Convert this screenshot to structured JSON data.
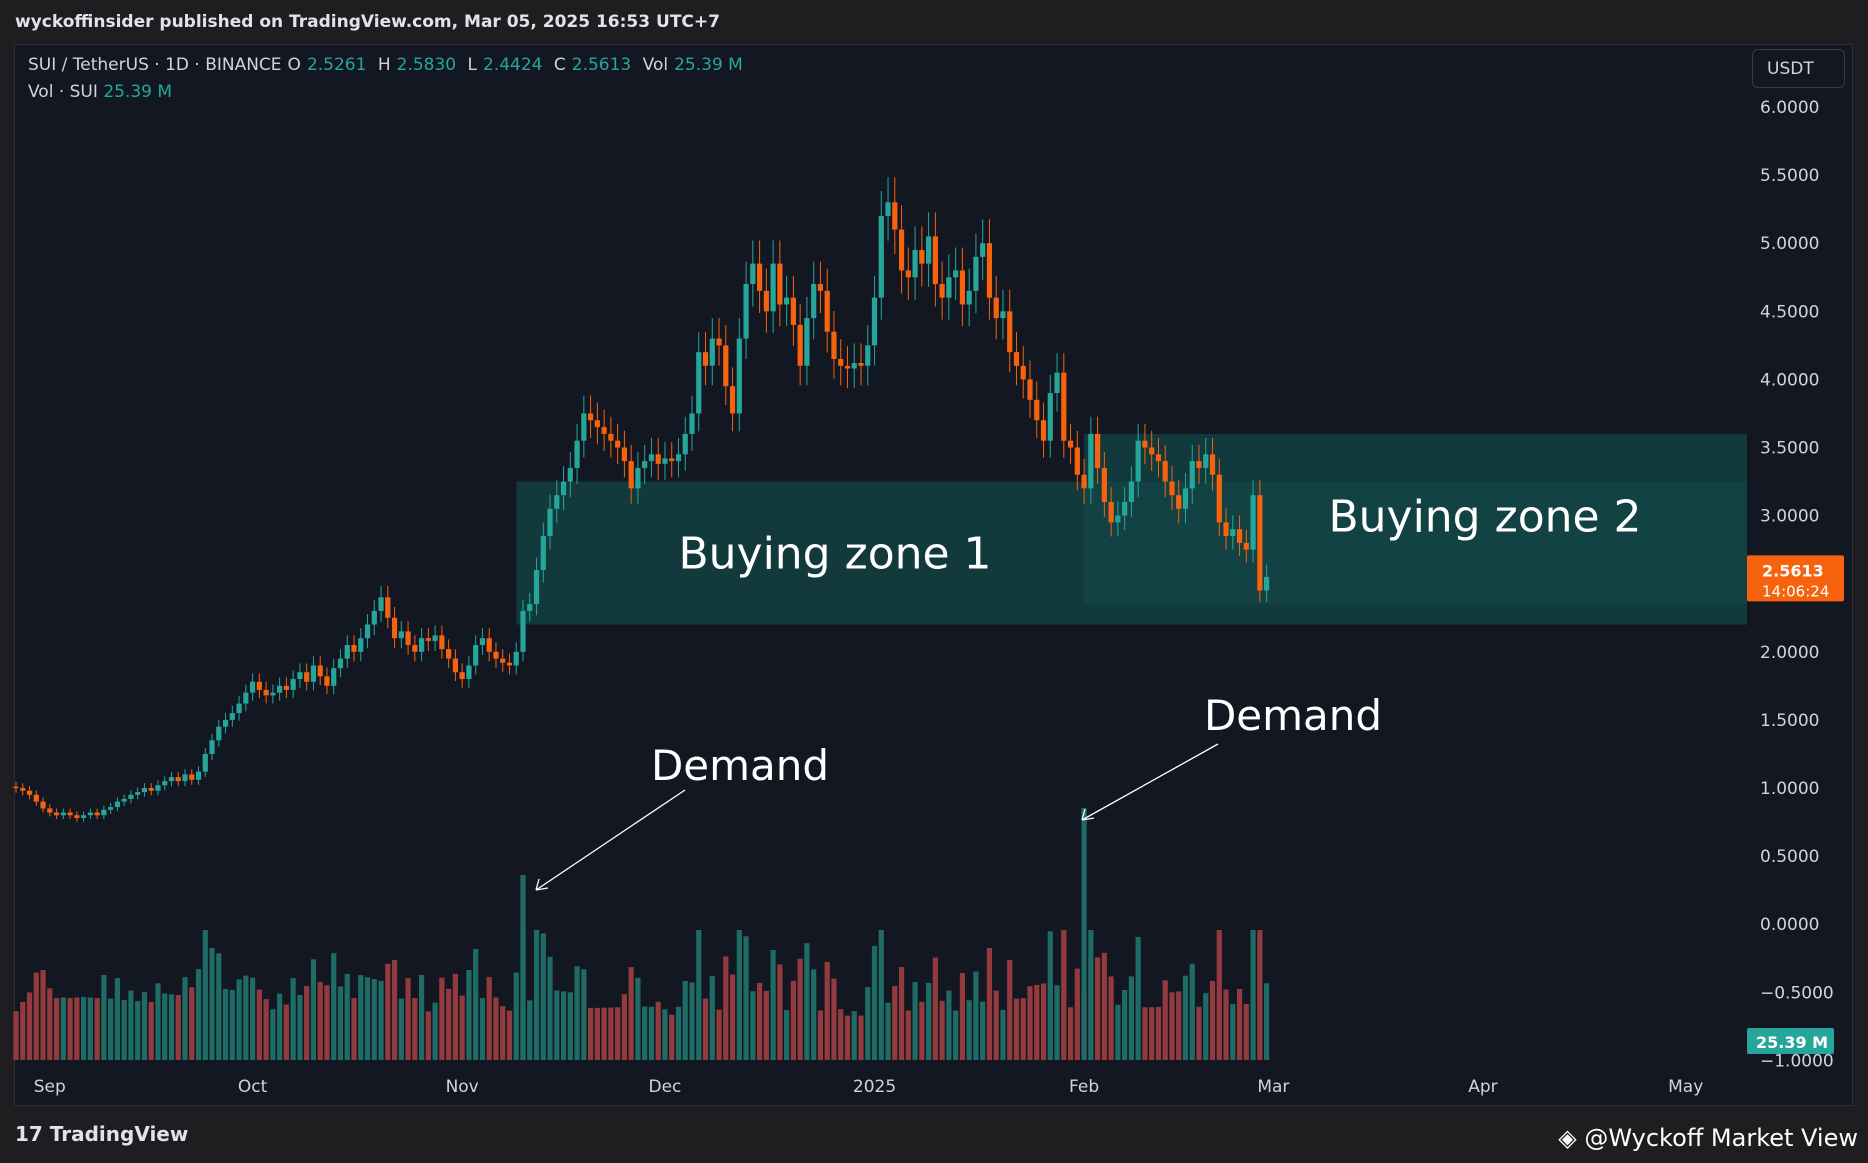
{
  "header": {
    "published": "wyckoffinsider published on TradingView.com, Mar 05, 2025 16:53 UTC+7"
  },
  "legend": {
    "symbol": "SUI / TetherUS · 1D · BINANCE",
    "o_label": "O",
    "o_value": "2.5261",
    "h_label": "H",
    "h_value": "2.5830",
    "l_label": "L",
    "l_value": "2.4424",
    "c_label": "C",
    "c_value": "2.5613",
    "vol_label": "Vol",
    "vol_value": "25.39 M",
    "vol_line_label": "Vol · SUI",
    "vol_line_value": "25.39 M"
  },
  "currency_button": "USDT",
  "price_label": {
    "price": "2.5613",
    "countdown": "14:06:24",
    "color": "#f7620f"
  },
  "volume_label": {
    "text": "25.39 M",
    "color": "#26a69a"
  },
  "footer": {
    "brand": "TradingView",
    "credit": "@Wyckoff Market View"
  },
  "colors": {
    "up": "#26a69a",
    "down": "#f7620f",
    "vol_up": "#1f6b66",
    "vol_down": "#933a3f",
    "zone": "#134545"
  },
  "chart_data": {
    "type": "candlestick",
    "title": "SUI / TetherUS · 1D · BINANCE",
    "y_axis": {
      "ticks": [
        "6.0000",
        "5.5000",
        "5.0000",
        "4.5000",
        "4.0000",
        "3.5000",
        "3.0000",
        "2.5000",
        "2.0000",
        "1.5000",
        "1.0000",
        "0.5000",
        "0.0000",
        "−0.5000",
        "−1.0000"
      ],
      "ylim": [
        -1.0,
        6.0
      ],
      "position": "right"
    },
    "x_axis": {
      "ticks": [
        "Sep",
        "Oct",
        "Nov",
        "Dec",
        "2025",
        "Feb",
        "Mar",
        "Apr",
        "May"
      ]
    },
    "zones": [
      {
        "label": "Buying zone 1",
        "y_low": 2.2,
        "y_high": 3.25,
        "x_start": "2024-11-09",
        "x_end": "2025-05-20"
      },
      {
        "label": "Buying zone 2",
        "y_low": 2.35,
        "y_high": 3.6,
        "x_start": "2025-02-01",
        "x_end": "2025-05-20"
      }
    ],
    "annotations": [
      {
        "text": "Demand",
        "target_date": "2024-11-10"
      },
      {
        "text": "Demand",
        "target_date": "2025-02-01"
      }
    ],
    "close_series": [
      1.0,
      0.98,
      0.95,
      0.9,
      0.85,
      0.82,
      0.8,
      0.82,
      0.8,
      0.78,
      0.8,
      0.82,
      0.8,
      0.84,
      0.86,
      0.9,
      0.92,
      0.95,
      0.97,
      1.0,
      0.98,
      1.02,
      1.05,
      1.08,
      1.05,
      1.1,
      1.06,
      1.12,
      1.25,
      1.35,
      1.45,
      1.5,
      1.55,
      1.62,
      1.7,
      1.78,
      1.72,
      1.68,
      1.7,
      1.75,
      1.72,
      1.8,
      1.85,
      1.78,
      1.9,
      1.82,
      1.75,
      1.88,
      1.95,
      2.05,
      2.0,
      2.1,
      2.2,
      2.3,
      2.4,
      2.25,
      2.1,
      2.15,
      2.05,
      2.0,
      2.1,
      2.08,
      2.12,
      2.02,
      1.95,
      1.85,
      1.8,
      1.9,
      2.05,
      2.1,
      2.0,
      1.95,
      1.92,
      1.9,
      2.0,
      2.3,
      2.35,
      2.6,
      2.85,
      3.05,
      3.15,
      3.25,
      3.35,
      3.55,
      3.75,
      3.7,
      3.65,
      3.6,
      3.55,
      3.5,
      3.4,
      3.2,
      3.35,
      3.4,
      3.45,
      3.38,
      3.42,
      3.4,
      3.45,
      3.6,
      3.75,
      4.2,
      4.1,
      4.3,
      4.25,
      3.95,
      3.75,
      4.3,
      4.7,
      4.85,
      4.65,
      4.5,
      4.85,
      4.55,
      4.6,
      4.4,
      4.1,
      4.45,
      4.7,
      4.65,
      4.35,
      4.15,
      4.1,
      4.08,
      4.12,
      4.1,
      4.25,
      4.6,
      5.2,
      5.3,
      5.1,
      4.8,
      4.75,
      4.95,
      4.85,
      5.05,
      4.7,
      4.6,
      4.75,
      4.8,
      4.55,
      4.65,
      4.9,
      5.0,
      4.6,
      4.45,
      4.5,
      4.2,
      4.1,
      4.0,
      3.85,
      3.7,
      3.55,
      3.9,
      4.05,
      3.55,
      3.5,
      3.3,
      3.2,
      3.6,
      3.35,
      3.1,
      2.95,
      3.0,
      3.1,
      3.25,
      3.55,
      3.5,
      3.45,
      3.4,
      3.25,
      3.15,
      3.05,
      3.2,
      3.4,
      3.35,
      3.45,
      3.3,
      2.95,
      2.85,
      2.9,
      2.8,
      2.75,
      3.15,
      2.45,
      2.55
    ],
    "volume_note": "relative volume bars; largest spikes on 2024-11-10 and 2025-02-01"
  }
}
